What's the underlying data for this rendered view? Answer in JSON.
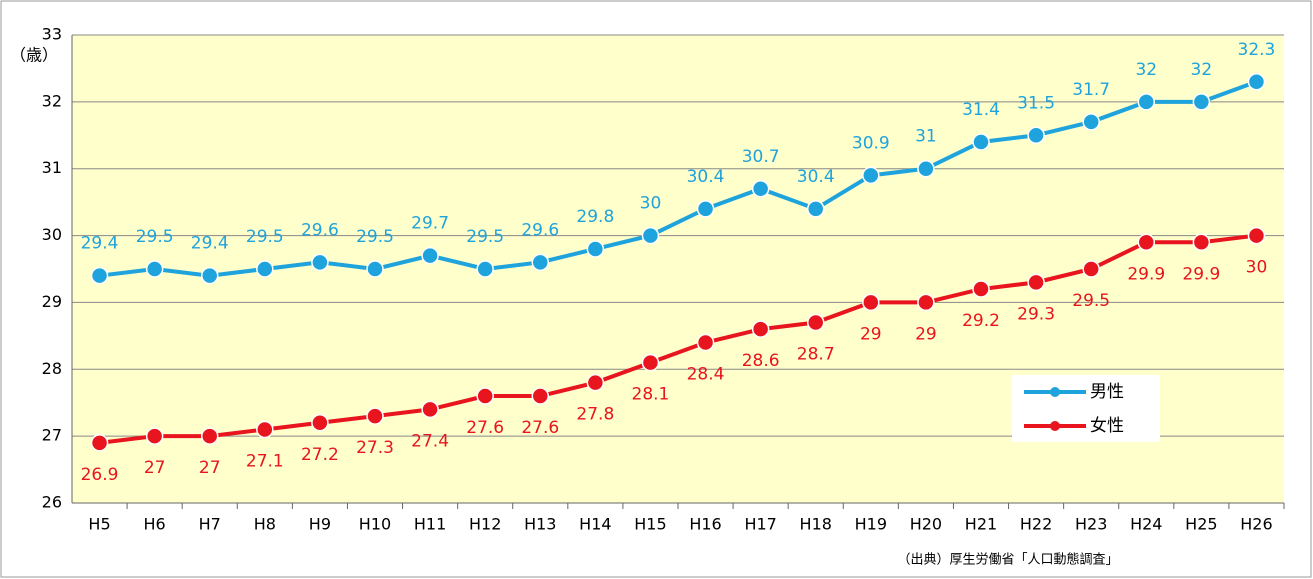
{
  "chart_data": {
    "type": "line",
    "y_label": "（歳）",
    "source": "（出典）厚生労働省「人口動態調査」",
    "categories": [
      "H5",
      "H6",
      "H7",
      "H8",
      "H9",
      "H10",
      "H11",
      "H12",
      "H13",
      "H14",
      "H15",
      "H16",
      "H17",
      "H18",
      "H19",
      "H20",
      "H21",
      "H22",
      "H23",
      "H24",
      "H25",
      "H26"
    ],
    "series": [
      {
        "name": "男性",
        "color": "#1fa3dc",
        "values": [
          29.4,
          29.5,
          29.4,
          29.5,
          29.6,
          29.5,
          29.7,
          29.5,
          29.6,
          29.8,
          30,
          30.4,
          30.7,
          30.4,
          30.9,
          31,
          31.4,
          31.5,
          31.7,
          32,
          32,
          32.3
        ]
      },
      {
        "name": "女性",
        "color": "#e8141e",
        "values": [
          26.9,
          27,
          27,
          27.1,
          27.2,
          27.3,
          27.4,
          27.6,
          27.6,
          27.8,
          28.1,
          28.4,
          28.6,
          28.7,
          29,
          29,
          29.2,
          29.3,
          29.5,
          29.9,
          29.9,
          30
        ]
      }
    ],
    "ylim": [
      26,
      33
    ],
    "yticks": [
      26,
      27,
      28,
      29,
      30,
      31,
      32,
      33
    ],
    "grid": true,
    "legend": "lower-right"
  }
}
